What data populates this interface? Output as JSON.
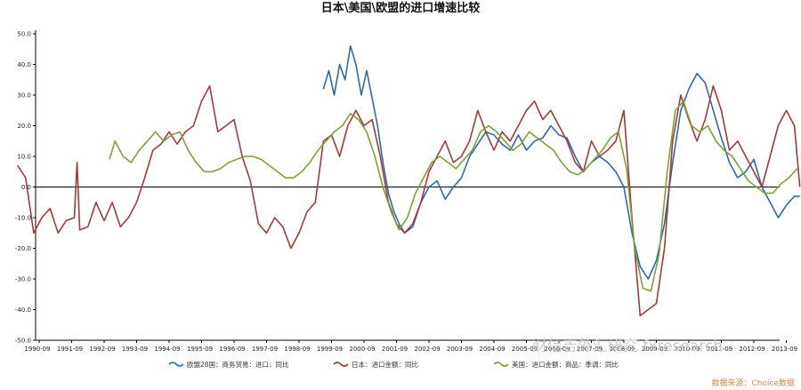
{
  "chart_data": {
    "type": "line",
    "title": "日本\\美国\\欧盟的进口增速比较",
    "ylim": [
      -50,
      50
    ],
    "ytick_labels": [
      "50.0",
      "40.0",
      "30.0",
      "20.0",
      "10.0",
      "0.0",
      "-10.0",
      "-20.0",
      "-30.0",
      "-40.0",
      "-50.0"
    ],
    "xtick_labels": [
      "1990-09",
      "1991-09",
      "1992-09",
      "1993-09",
      "1994-09",
      "1995-09",
      "1996-09",
      "1997-09",
      "1998-09",
      "1999-09",
      "2000-09",
      "2001-09",
      "2002-09",
      "2003-09",
      "2004-09",
      "2005-09",
      "2006-09",
      "2007-09",
      "2008-09",
      "2009-09",
      "2010-09",
      "2011-09",
      "2012-09",
      "2013-09"
    ],
    "x_axis_type": "date",
    "zero_line": true,
    "legend_position": "bottom",
    "series": [
      {
        "name": "欧盟28国：商务贸易：进口：同比",
        "color": "#2e6aa6",
        "points": [
          [
            "1999-06",
            32
          ],
          [
            "1999-08",
            38
          ],
          [
            "1999-10",
            30
          ],
          [
            "1999-12",
            40
          ],
          [
            "2000-02",
            35
          ],
          [
            "2000-04",
            46
          ],
          [
            "2000-06",
            40
          ],
          [
            "2000-08",
            30
          ],
          [
            "2000-10",
            38
          ],
          [
            "2000-12",
            29
          ],
          [
            "2001-02",
            20
          ],
          [
            "2001-04",
            8
          ],
          [
            "2001-06",
            -2
          ],
          [
            "2001-08",
            -8
          ],
          [
            "2001-10",
            -12
          ],
          [
            "2001-12",
            -15
          ],
          [
            "2002-03",
            -13
          ],
          [
            "2002-06",
            -5
          ],
          [
            "2002-09",
            0
          ],
          [
            "2002-12",
            2
          ],
          [
            "2003-03",
            -4
          ],
          [
            "2003-06",
            0
          ],
          [
            "2003-09",
            3
          ],
          [
            "2003-12",
            10
          ],
          [
            "2004-03",
            14
          ],
          [
            "2004-06",
            18
          ],
          [
            "2004-09",
            17
          ],
          [
            "2004-12",
            14
          ],
          [
            "2005-03",
            12
          ],
          [
            "2005-06",
            17
          ],
          [
            "2005-09",
            12
          ],
          [
            "2005-12",
            15
          ],
          [
            "2006-03",
            16
          ],
          [
            "2006-06",
            20
          ],
          [
            "2006-09",
            17
          ],
          [
            "2006-12",
            16
          ],
          [
            "2007-03",
            10
          ],
          [
            "2007-06",
            5
          ],
          [
            "2007-09",
            8
          ],
          [
            "2007-12",
            10
          ],
          [
            "2008-03",
            8
          ],
          [
            "2008-06",
            5
          ],
          [
            "2008-09",
            0
          ],
          [
            "2008-12",
            -15
          ],
          [
            "2009-03",
            -26
          ],
          [
            "2009-06",
            -30
          ],
          [
            "2009-09",
            -24
          ],
          [
            "2009-12",
            -12
          ],
          [
            "2010-03",
            8
          ],
          [
            "2010-06",
            25
          ],
          [
            "2010-09",
            32
          ],
          [
            "2010-12",
            37
          ],
          [
            "2011-03",
            34
          ],
          [
            "2011-06",
            25
          ],
          [
            "2011-09",
            16
          ],
          [
            "2011-12",
            8
          ],
          [
            "2012-03",
            3
          ],
          [
            "2012-06",
            5
          ],
          [
            "2012-09",
            9
          ],
          [
            "2012-12",
            0
          ],
          [
            "2013-03",
            -5
          ],
          [
            "2013-06",
            -10
          ],
          [
            "2013-09",
            -6
          ],
          [
            "2013-12",
            -3
          ],
          [
            "2014-02",
            -3
          ]
        ]
      },
      {
        "name": "日本：进口金额：同比",
        "color": "#a33a3a",
        "points": [
          [
            "1990-01",
            7
          ],
          [
            "1990-04",
            3
          ],
          [
            "1990-07",
            -15
          ],
          [
            "1990-10",
            -10
          ],
          [
            "1991-01",
            -7
          ],
          [
            "1991-04",
            -15
          ],
          [
            "1991-07",
            -11
          ],
          [
            "1991-10",
            -10
          ],
          [
            "1991-11",
            8
          ],
          [
            "1991-12",
            -14
          ],
          [
            "1992-03",
            -13
          ],
          [
            "1992-06",
            -5
          ],
          [
            "1992-09",
            -11
          ],
          [
            "1992-12",
            -5
          ],
          [
            "1993-03",
            -13
          ],
          [
            "1993-06",
            -10
          ],
          [
            "1993-09",
            -5
          ],
          [
            "1993-12",
            3
          ],
          [
            "1994-03",
            12
          ],
          [
            "1994-06",
            14
          ],
          [
            "1994-09",
            18
          ],
          [
            "1994-12",
            14
          ],
          [
            "1995-03",
            18
          ],
          [
            "1995-06",
            20
          ],
          [
            "1995-09",
            28
          ],
          [
            "1995-12",
            33
          ],
          [
            "1996-03",
            18
          ],
          [
            "1996-06",
            20
          ],
          [
            "1996-09",
            22
          ],
          [
            "1996-12",
            10
          ],
          [
            "1997-03",
            2
          ],
          [
            "1997-06",
            -12
          ],
          [
            "1997-09",
            -15
          ],
          [
            "1997-12",
            -10
          ],
          [
            "1998-03",
            -13
          ],
          [
            "1998-06",
            -20
          ],
          [
            "1998-09",
            -15
          ],
          [
            "1998-12",
            -8
          ],
          [
            "1999-03",
            -5
          ],
          [
            "1999-06",
            15
          ],
          [
            "1999-09",
            17
          ],
          [
            "1999-12",
            10
          ],
          [
            "2000-03",
            20
          ],
          [
            "2000-06",
            25
          ],
          [
            "2000-09",
            20
          ],
          [
            "2000-12",
            22
          ],
          [
            "2001-03",
            10
          ],
          [
            "2001-06",
            -5
          ],
          [
            "2001-09",
            -12
          ],
          [
            "2001-12",
            -15
          ],
          [
            "2002-03",
            -12
          ],
          [
            "2002-06",
            -5
          ],
          [
            "2002-09",
            5
          ],
          [
            "2002-12",
            10
          ],
          [
            "2003-03",
            15
          ],
          [
            "2003-06",
            8
          ],
          [
            "2003-09",
            10
          ],
          [
            "2003-12",
            15
          ],
          [
            "2004-03",
            25
          ],
          [
            "2004-06",
            18
          ],
          [
            "2004-09",
            12
          ],
          [
            "2004-12",
            18
          ],
          [
            "2005-03",
            15
          ],
          [
            "2005-06",
            20
          ],
          [
            "2005-09",
            25
          ],
          [
            "2005-12",
            28
          ],
          [
            "2006-03",
            22
          ],
          [
            "2006-06",
            25
          ],
          [
            "2006-09",
            20
          ],
          [
            "2006-12",
            15
          ],
          [
            "2007-03",
            8
          ],
          [
            "2007-06",
            5
          ],
          [
            "2007-09",
            15
          ],
          [
            "2007-12",
            10
          ],
          [
            "2008-03",
            12
          ],
          [
            "2008-06",
            15
          ],
          [
            "2008-09",
            25
          ],
          [
            "2008-12",
            -10
          ],
          [
            "2009-03",
            -42
          ],
          [
            "2009-06",
            -40
          ],
          [
            "2009-09",
            -38
          ],
          [
            "2009-12",
            -20
          ],
          [
            "2010-03",
            15
          ],
          [
            "2010-06",
            30
          ],
          [
            "2010-09",
            22
          ],
          [
            "2010-12",
            15
          ],
          [
            "2011-03",
            22
          ],
          [
            "2011-06",
            33
          ],
          [
            "2011-09",
            25
          ],
          [
            "2011-12",
            12
          ],
          [
            "2012-03",
            15
          ],
          [
            "2012-06",
            10
          ],
          [
            "2012-09",
            5
          ],
          [
            "2012-12",
            0
          ],
          [
            "2013-03",
            10
          ],
          [
            "2013-06",
            20
          ],
          [
            "2013-09",
            25
          ],
          [
            "2013-12",
            20
          ],
          [
            "2014-02",
            0
          ]
        ]
      },
      {
        "name": "美国：进口金额：商品：季调：同比",
        "color": "#7da03a",
        "points": [
          [
            "1992-11",
            9
          ],
          [
            "1993-01",
            15
          ],
          [
            "1993-04",
            10
          ],
          [
            "1993-07",
            8
          ],
          [
            "1993-10",
            12
          ],
          [
            "1994-01",
            15
          ],
          [
            "1994-04",
            18
          ],
          [
            "1994-07",
            15
          ],
          [
            "1994-10",
            17
          ],
          [
            "1995-01",
            18
          ],
          [
            "1995-04",
            12
          ],
          [
            "1995-07",
            8
          ],
          [
            "1995-10",
            5
          ],
          [
            "1996-01",
            5
          ],
          [
            "1996-04",
            6
          ],
          [
            "1996-07",
            8
          ],
          [
            "1996-10",
            9
          ],
          [
            "1997-01",
            10
          ],
          [
            "1997-04",
            10
          ],
          [
            "1997-07",
            9
          ],
          [
            "1997-10",
            7
          ],
          [
            "1998-01",
            5
          ],
          [
            "1998-04",
            3
          ],
          [
            "1998-07",
            3
          ],
          [
            "1998-10",
            5
          ],
          [
            "1999-01",
            8
          ],
          [
            "1999-04",
            12
          ],
          [
            "1999-07",
            15
          ],
          [
            "1999-10",
            18
          ],
          [
            "2000-01",
            20
          ],
          [
            "2000-04",
            24
          ],
          [
            "2000-07",
            22
          ],
          [
            "2000-10",
            18
          ],
          [
            "2001-01",
            10
          ],
          [
            "2001-04",
            0
          ],
          [
            "2001-07",
            -8
          ],
          [
            "2001-10",
            -14
          ],
          [
            "2002-01",
            -10
          ],
          [
            "2002-04",
            -2
          ],
          [
            "2002-07",
            3
          ],
          [
            "2002-10",
            8
          ],
          [
            "2003-01",
            10
          ],
          [
            "2003-04",
            8
          ],
          [
            "2003-07",
            6
          ],
          [
            "2003-10",
            9
          ],
          [
            "2004-01",
            12
          ],
          [
            "2004-04",
            18
          ],
          [
            "2004-07",
            20
          ],
          [
            "2004-10",
            18
          ],
          [
            "2005-01",
            15
          ],
          [
            "2005-04",
            12
          ],
          [
            "2005-07",
            14
          ],
          [
            "2005-10",
            18
          ],
          [
            "2006-01",
            16
          ],
          [
            "2006-04",
            14
          ],
          [
            "2006-07",
            12
          ],
          [
            "2006-10",
            8
          ],
          [
            "2007-01",
            5
          ],
          [
            "2007-04",
            4
          ],
          [
            "2007-07",
            6
          ],
          [
            "2007-10",
            9
          ],
          [
            "2008-01",
            12
          ],
          [
            "2008-04",
            16
          ],
          [
            "2008-07",
            18
          ],
          [
            "2008-10",
            6
          ],
          [
            "2009-01",
            -20
          ],
          [
            "2009-04",
            -33
          ],
          [
            "2009-07",
            -34
          ],
          [
            "2009-10",
            -22
          ],
          [
            "2010-01",
            5
          ],
          [
            "2010-04",
            25
          ],
          [
            "2010-07",
            28
          ],
          [
            "2010-10",
            20
          ],
          [
            "2011-01",
            18
          ],
          [
            "2011-04",
            20
          ],
          [
            "2011-07",
            15
          ],
          [
            "2011-10",
            12
          ],
          [
            "2012-01",
            10
          ],
          [
            "2012-04",
            6
          ],
          [
            "2012-07",
            2
          ],
          [
            "2012-10",
            0
          ],
          [
            "2013-01",
            -2
          ],
          [
            "2013-04",
            -2
          ],
          [
            "2013-07",
            1
          ],
          [
            "2013-10",
            3
          ],
          [
            "2014-01",
            6
          ]
        ]
      }
    ]
  },
  "legend": {
    "items": [
      {
        "label": "欧盟28国：商务贸易：进口：同比"
      },
      {
        "label": "日本：进口金额：同比"
      },
      {
        "label": "美国：进口金额：商品：季调：同比"
      }
    ]
  },
  "footer": {
    "watermark": "财信吉外汇研究 fxresearch",
    "source": "数据来源：Choice数据"
  }
}
